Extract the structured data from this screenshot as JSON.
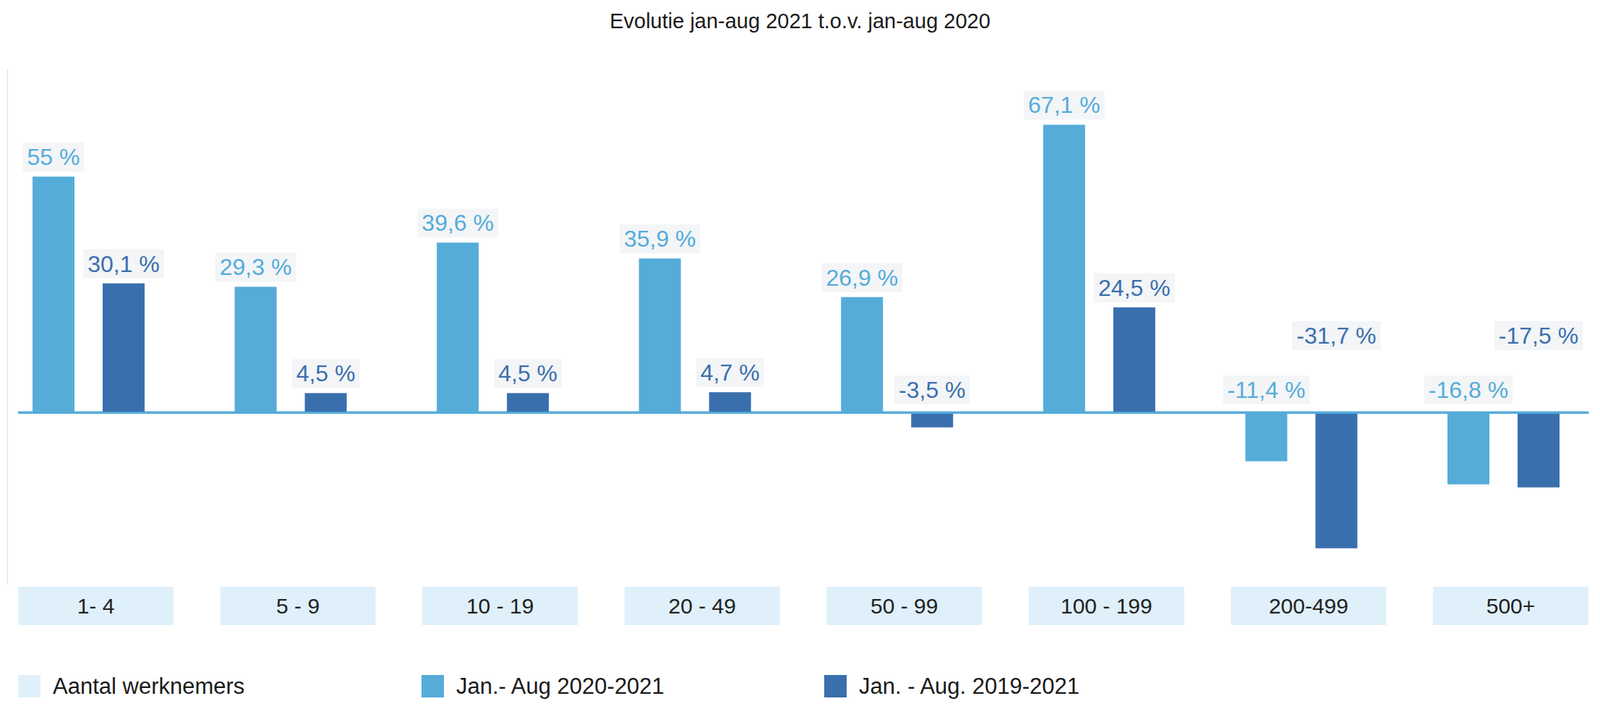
{
  "chart_data": {
    "type": "bar",
    "title": "Evolutie jan-aug 2021 t.o.v. jan-aug 2020",
    "xlabel": "Aantal werknemers",
    "categories": [
      "1- 4",
      "5 - 9",
      "10 - 19",
      "20 - 49",
      "50 - 99",
      "100 - 199",
      "200-499",
      "500+"
    ],
    "series": [
      {
        "name": "Jan.- Aug 2020-2021",
        "color": "#55acd9",
        "values": [
          55,
          29.3,
          39.6,
          35.9,
          26.9,
          67.1,
          -11.4,
          -16.8
        ],
        "value_labels": [
          "55 %",
          "29,3 %",
          "39,6 %",
          "35,9 %",
          "26,9 %",
          "67,1 %",
          "-11,4 %",
          "-16,8 %"
        ]
      },
      {
        "name": "Jan. - Aug. 2019-2021",
        "color": "#3a6fad",
        "values": [
          30.1,
          4.5,
          4.5,
          4.7,
          -3.5,
          24.5,
          -31.7,
          -17.5
        ],
        "value_labels": [
          "30,1 %",
          "4,5 %",
          "4,5 %",
          "4,7 %",
          "-3,5 %",
          "24,5 %",
          "-31,7 %",
          "-17,5 %"
        ]
      }
    ],
    "ylim": [
      -40,
      80
    ],
    "yticks": [
      0
    ],
    "data_labels": true,
    "tick_labels": "x",
    "legend": "bottom"
  }
}
